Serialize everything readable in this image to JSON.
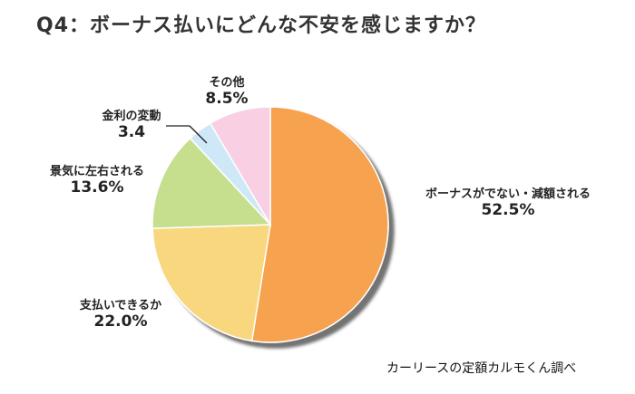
{
  "title": "Q4：ボーナス払いにどんな不安を感じますか？",
  "source": "カーリースの定額カルモくん調べ",
  "chart_data": {
    "type": "pie",
    "title": "Q4：ボーナス払いにどんな不安を感じますか？",
    "slices": [
      {
        "label": "ボーナスがでない・減額される",
        "value_text": "52.5%",
        "value": 52.5,
        "color": "#f7a24f"
      },
      {
        "label": "支払いできるか",
        "value_text": "22.0%",
        "value": 22.0,
        "color": "#f8d77e"
      },
      {
        "label": "景気に左右される",
        "value_text": "13.6%",
        "value": 13.6,
        "color": "#c6df8f"
      },
      {
        "label": "金利の変動",
        "value_text": "3.4",
        "value": 3.4,
        "color": "#cfe8f7"
      },
      {
        "label": "その他",
        "value_text": "8.5%",
        "value": 8.5,
        "color": "#f8cfe3"
      }
    ]
  }
}
